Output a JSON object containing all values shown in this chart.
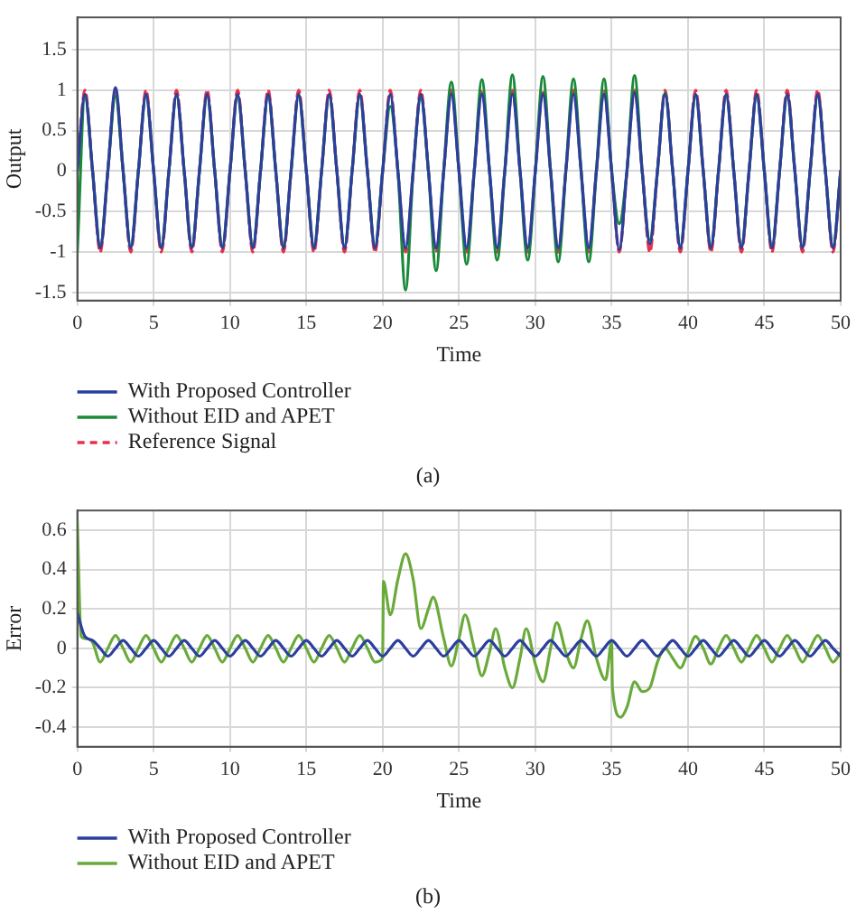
{
  "chart_data": [
    {
      "type": "line",
      "xlabel": "Time",
      "ylabel": "Output",
      "annotations": [
        "(a)"
      ],
      "xlim": [
        0,
        50
      ],
      "ylim": [
        -1.6,
        1.9
      ],
      "xticks": [
        0,
        5,
        10,
        15,
        20,
        25,
        30,
        35,
        40,
        45,
        50
      ],
      "yticks": [
        -1.5,
        -1,
        -0.5,
        0,
        0.5,
        1,
        1.5
      ],
      "grid": true,
      "legend": "bottom left",
      "marker": "none",
      "x": [
        0,
        0.5,
        1,
        1.5,
        2,
        2.5,
        3,
        3.5,
        4,
        4.5,
        5,
        5.5,
        6,
        6.5,
        7,
        7.5,
        8,
        8.5,
        9,
        9.5,
        10,
        10.5,
        11,
        11.5,
        12,
        12.5,
        13,
        13.5,
        14,
        14.5,
        15,
        15.5,
        16,
        16.5,
        17,
        17.5,
        18,
        18.5,
        19,
        19.5,
        20,
        20.5,
        21,
        21.5,
        22,
        22.5,
        23,
        23.5,
        24,
        24.5,
        25,
        25.5,
        26,
        26.5,
        27,
        27.5,
        28,
        28.5,
        29,
        29.5,
        30,
        30.5,
        31,
        31.5,
        32,
        32.5,
        33,
        33.5,
        34,
        34.5,
        35,
        35.5,
        36,
        36.5,
        37,
        37.5,
        38,
        38.5,
        39,
        39.5,
        40,
        40.5,
        41,
        41.5,
        42,
        42.5,
        43,
        43.5,
        44,
        44.5,
        45,
        45.5,
        46,
        46.5,
        47,
        47.5,
        48,
        48.5,
        49,
        49.5,
        50
      ],
      "series": [
        {
          "name": "With Proposed Controller",
          "color": "#2b3f9e",
          "line_style": "solid",
          "values": [
            0,
            0.95,
            0,
            -0.95,
            0,
            1.03,
            0,
            -0.95,
            0,
            0.95,
            0,
            -0.95,
            0,
            0.95,
            0,
            -0.95,
            0,
            0.95,
            0,
            -0.95,
            0,
            0.95,
            0,
            -0.95,
            0,
            0.95,
            0,
            -0.95,
            0,
            0.95,
            0,
            -0.95,
            0,
            0.95,
            0,
            -0.95,
            0,
            0.95,
            0,
            -0.95,
            0,
            0.95,
            0,
            -0.95,
            0,
            0.95,
            0,
            -0.95,
            0,
            0.95,
            0,
            -0.95,
            0,
            0.95,
            0,
            -0.95,
            0,
            0.95,
            0,
            -0.95,
            0,
            0.95,
            0,
            -0.95,
            0,
            0.95,
            0,
            -0.95,
            0,
            0.95,
            0,
            -0.97,
            0,
            0.97,
            0,
            -0.9,
            0,
            0.95,
            0,
            -0.95,
            0,
            0.95,
            0,
            -0.95,
            0,
            0.95,
            0,
            -0.95,
            0,
            0.95,
            0,
            -0.95,
            0,
            0.95,
            0,
            -0.95,
            0,
            0.95,
            0,
            -0.95,
            0
          ]
        },
        {
          "name": "Without EID and APET",
          "color": "#1a8a3a",
          "line_style": "solid",
          "values": [
            -1,
            0.93,
            0,
            -0.93,
            0,
            0.93,
            0,
            -0.93,
            0,
            0.93,
            0,
            -0.93,
            0,
            0.93,
            0,
            -0.93,
            0,
            0.93,
            0,
            -0.93,
            0,
            0.93,
            0,
            -0.93,
            0,
            0.93,
            0,
            -0.93,
            0,
            0.93,
            0,
            -0.93,
            0,
            0.93,
            0,
            -0.93,
            0,
            0.93,
            0,
            -0.93,
            0,
            0.8,
            0,
            -1.47,
            0,
            0.9,
            0,
            -1.23,
            0,
            1.1,
            0,
            -1.15,
            0,
            1.13,
            0,
            -1.1,
            0,
            1.19,
            0,
            -1.1,
            0,
            1.17,
            0,
            -1.12,
            0,
            1.14,
            0,
            -1.12,
            0,
            1.14,
            0,
            -0.65,
            0,
            1.18,
            0,
            -0.85,
            0,
            0.97,
            0,
            -0.93,
            0,
            0.93,
            0,
            -0.93,
            0,
            0.93,
            0,
            -0.93,
            0,
            0.93,
            0,
            -0.93,
            0,
            0.93,
            0,
            -0.93,
            0,
            0.93,
            0,
            -0.93,
            0
          ]
        },
        {
          "name": "Reference Signal",
          "color": "#e8304a",
          "line_style": "dashed",
          "values": [
            0,
            1,
            0,
            -1,
            0,
            1,
            0,
            -1,
            0,
            1,
            0,
            -1,
            0,
            1,
            0,
            -1,
            0,
            1,
            0,
            -1,
            0,
            1,
            0,
            -1,
            0,
            1,
            0,
            -1,
            0,
            1,
            0,
            -1,
            0,
            1,
            0,
            -1,
            0,
            1,
            0,
            -1,
            0,
            1,
            0,
            -1,
            0,
            1,
            0,
            -1,
            0,
            1,
            0,
            -1,
            0,
            1,
            0,
            -1,
            0,
            1,
            0,
            -1,
            0,
            1,
            0,
            -1,
            0,
            1,
            0,
            -1,
            0,
            1,
            0,
            -1,
            0,
            1,
            0,
            -1,
            0,
            1,
            0,
            -1,
            0,
            1,
            0,
            -1,
            0,
            1,
            0,
            -1,
            0,
            1,
            0,
            -1,
            0,
            1,
            0,
            -1,
            0,
            1,
            0,
            -1,
            0
          ]
        }
      ]
    },
    {
      "type": "line",
      "xlabel": "Time",
      "ylabel": "Error",
      "annotations": [
        "(b)"
      ],
      "xlim": [
        0,
        50
      ],
      "ylim": [
        -0.5,
        0.7
      ],
      "xticks": [
        0,
        5,
        10,
        15,
        20,
        25,
        30,
        35,
        40,
        45,
        50
      ],
      "yticks": [
        -0.4,
        -0.2,
        0,
        0.2,
        0.4,
        0.6
      ],
      "grid": true,
      "legend": "bottom left",
      "marker": "none",
      "x": [
        0,
        0.5,
        1,
        1.5,
        2,
        2.5,
        3,
        3.5,
        4,
        4.5,
        5,
        5.5,
        6,
        6.5,
        7,
        7.5,
        8,
        8.5,
        9,
        9.5,
        10,
        10.5,
        11,
        11.5,
        12,
        12.5,
        13,
        13.5,
        14,
        14.5,
        15,
        15.5,
        16,
        16.5,
        17,
        17.5,
        18,
        18.5,
        19,
        19.5,
        20,
        20.5,
        21,
        21.5,
        22,
        22.5,
        23,
        23.5,
        24,
        24.5,
        25,
        25.5,
        26,
        26.5,
        27,
        27.5,
        28,
        28.5,
        29,
        29.5,
        30,
        30.5,
        31,
        31.5,
        32,
        32.5,
        33,
        33.5,
        34,
        34.5,
        35,
        35.5,
        36,
        36.5,
        37,
        37.5,
        38,
        38.5,
        39,
        39.5,
        40,
        40.5,
        41,
        41.5,
        42,
        42.5,
        43,
        43.5,
        44,
        44.5,
        45,
        45.5,
        46,
        46.5,
        47,
        47.5,
        48,
        48.5,
        49,
        49.5,
        50
      ],
      "series": [
        {
          "name": "With Proposed Controller",
          "color": "#2b3f9e",
          "line_style": "solid",
          "values": [
            0.18,
            0.06,
            0.04,
            0,
            -0.04,
            0,
            0.04,
            0,
            -0.04,
            0,
            0.04,
            0,
            -0.04,
            0,
            0.04,
            0,
            -0.04,
            0,
            0.04,
            0,
            -0.04,
            0,
            0.04,
            0,
            -0.04,
            0,
            0.04,
            0,
            -0.04,
            0,
            0.04,
            0,
            -0.04,
            0,
            0.04,
            0,
            -0.04,
            0,
            0.04,
            0,
            -0.04,
            0,
            0.04,
            0,
            -0.04,
            0,
            0.04,
            0,
            -0.04,
            0,
            0.04,
            0,
            -0.04,
            0,
            0.04,
            0,
            -0.04,
            0,
            0.04,
            0,
            -0.04,
            0,
            0.04,
            0,
            -0.04,
            0,
            0.04,
            0,
            -0.04,
            0,
            0.04,
            0,
            -0.04,
            0,
            0.04,
            0,
            -0.04,
            0,
            0.04,
            0,
            -0.04,
            0,
            0.04,
            0,
            -0.04,
            0,
            0.04,
            0,
            -0.04,
            0,
            0.04,
            0,
            -0.04,
            0,
            0.04,
            0,
            -0.04,
            0,
            0.04,
            0,
            -0.04
          ]
        },
        {
          "name": "Without EID and APET",
          "color": "#6aaa3a",
          "line_style": "solid",
          "x": [
            0,
            0.25,
            0.5,
            1,
            1.5,
            2,
            2.5,
            3,
            3.5,
            4,
            4.5,
            5,
            5.5,
            6,
            6.5,
            7,
            7.5,
            8,
            8.5,
            9,
            9.5,
            10,
            10.5,
            11,
            11.5,
            12,
            12.5,
            13,
            13.5,
            14,
            14.5,
            15,
            15.5,
            16,
            16.5,
            17,
            17.5,
            18,
            18.5,
            19,
            19.5,
            20,
            20.05,
            20.5,
            21,
            21.5,
            22,
            22.5,
            23,
            23.3,
            24,
            24.5,
            25,
            25.4,
            26,
            26.5,
            27,
            27.4,
            28,
            28.5,
            29,
            29.4,
            30,
            30.5,
            31,
            31.4,
            32,
            32.5,
            33,
            33.4,
            34,
            34.6,
            35,
            35.05,
            35.6,
            36,
            36.5,
            37,
            37.5,
            38,
            38.5,
            39,
            39.5,
            40,
            40.5,
            41,
            41.5,
            42,
            42.5,
            43,
            43.5,
            44,
            44.5,
            45,
            45.5,
            46,
            46.5,
            47,
            47.5,
            48,
            48.5,
            49,
            49.5,
            50
          ],
          "values": [
            0.65,
            0.06,
            0.05,
            0.03,
            -0.07,
            0,
            0.065,
            0,
            -0.07,
            0,
            0.065,
            0,
            -0.07,
            0,
            0.065,
            0,
            -0.07,
            0,
            0.065,
            0,
            -0.07,
            0,
            0.065,
            0,
            -0.07,
            0,
            0.065,
            0,
            -0.07,
            0,
            0.065,
            0,
            -0.07,
            0,
            0.065,
            0,
            -0.07,
            0,
            0.065,
            0,
            -0.07,
            -0.05,
            0.34,
            0.17,
            0.35,
            0.48,
            0.35,
            0.1,
            0.2,
            0.26,
            0.05,
            -0.09,
            0.05,
            0.17,
            0,
            -0.14,
            -0.02,
            0.1,
            -0.1,
            -0.2,
            -0.05,
            0.1,
            -0.08,
            -0.17,
            0,
            0.13,
            -0.02,
            -0.1,
            0.05,
            0.14,
            -0.05,
            -0.16,
            0.03,
            -0.2,
            -0.35,
            -0.3,
            -0.17,
            -0.22,
            -0.2,
            -0.07,
            0,
            -0.05,
            -0.1,
            -0.02,
            0.06,
            0,
            -0.08,
            0,
            0.065,
            0,
            -0.07,
            0,
            0.065,
            0,
            -0.07,
            0,
            0.065,
            0,
            -0.07,
            0,
            0.065,
            0,
            -0.07,
            -0.02
          ]
        }
      ]
    }
  ]
}
